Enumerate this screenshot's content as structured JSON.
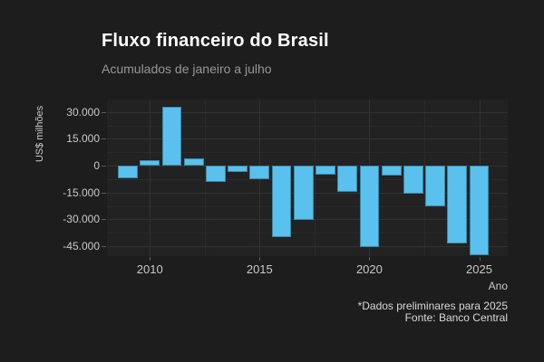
{
  "chart_data": {
    "type": "bar",
    "title": "Fluxo financeiro do Brasil",
    "subtitle": "Acumulados de janeiro a julho",
    "xlabel": "Ano",
    "ylabel": "US$ milhões",
    "caption_line1": "*Dados preliminares para 2025",
    "caption_line2": "Fonte: Banco Central",
    "x": [
      2009,
      2010,
      2011,
      2012,
      2013,
      2014,
      2015,
      2016,
      2017,
      2018,
      2019,
      2020,
      2021,
      2022,
      2023,
      2024,
      2025
    ],
    "values": [
      -7000,
      3000,
      33000,
      4000,
      -9000,
      -3300,
      -7700,
      -40000,
      -30500,
      -5000,
      -14600,
      -45600,
      -5400,
      -15500,
      -22600,
      -43500,
      -50000
    ],
    "units": "US$ milhões",
    "ylim": [
      -50500,
      37000
    ],
    "xlim": [
      2008.05,
      2026.3
    ],
    "bar_width_years": 0.9,
    "yticks": {
      "values": [
        30000,
        15000,
        0,
        -15000,
        -30000,
        -45000
      ],
      "labels": [
        "30.000",
        "15.000",
        "0",
        "-15.000",
        "-30.000",
        "-45.000"
      ]
    },
    "y_minor": [
      22500,
      7500,
      -7500,
      -22500,
      -37500
    ],
    "xticks": {
      "values": [
        2010,
        2015,
        2020,
        2025
      ],
      "labels": [
        "2010",
        "2015",
        "2020",
        "2025"
      ]
    },
    "x_minor": [
      2012.5,
      2017.5,
      2022.5
    ],
    "legend": "none",
    "grid": "on",
    "colors": {
      "bar": "#5ac1ee",
      "background": "#1d1d1d",
      "panel": "#222222",
      "grid_minor": "#2a2a2a",
      "grid_major": "#323232",
      "title_text": "#ffffff",
      "subtitle_text": "#969696",
      "axis_text": "#c9c9c9",
      "caption_text": "#d8d8d8"
    }
  }
}
